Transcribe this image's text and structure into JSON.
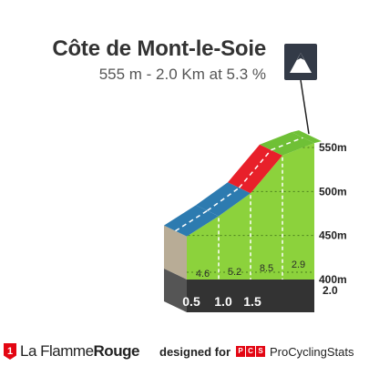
{
  "header": {
    "title": "Côte de Mont-le-Soie",
    "subtitle": "555 m - 2.0 Km at 5.3 %"
  },
  "icon": {
    "name": "mountain-summit-icon",
    "bg": "#333a47"
  },
  "colors": {
    "green": "#8cd23c",
    "blue": "#2d7bb0",
    "red": "#e8202a",
    "top_green": "#6fc036",
    "side": "#b8ac96",
    "base": "#333333",
    "grid": "#2f5a10"
  },
  "chart_data": {
    "type": "area",
    "title": "Côte de Mont-le-Soie",
    "xlabel": "",
    "ylabel": "",
    "xlim": [
      0,
      2.0
    ],
    "ylim": [
      400,
      555
    ],
    "y_ticks": [
      "400m",
      "450m",
      "500m",
      "550m"
    ],
    "y_tick_values": [
      400,
      450,
      500,
      550
    ],
    "x_end_label": "2.0",
    "distance_labels": [
      "0.5",
      "1.0",
      "1.5"
    ],
    "segments": [
      {
        "from_km": 0.0,
        "to_km": 0.5,
        "gradient": "4.6",
        "color": "blue"
      },
      {
        "from_km": 0.5,
        "to_km": 1.0,
        "gradient": "5.2",
        "color": "blue"
      },
      {
        "from_km": 1.0,
        "to_km": 1.5,
        "gradient": "8.5",
        "color": "red"
      },
      {
        "from_km": 1.5,
        "to_km": 2.0,
        "gradient": "2.9",
        "color": "green"
      }
    ],
    "profile": [
      {
        "km": 0.0,
        "alt": 449
      },
      {
        "km": 0.5,
        "alt": 472
      },
      {
        "km": 1.0,
        "alt": 498
      },
      {
        "km": 1.5,
        "alt": 541
      },
      {
        "km": 2.0,
        "alt": 555
      }
    ],
    "grid": true,
    "legend": "none"
  },
  "footer": {
    "brand_mark": "1",
    "brand_plain": "La Flamme",
    "brand_bold": "Rouge",
    "designed_for": "designed for",
    "pcs_letters": [
      "P",
      "C",
      "S"
    ],
    "pcs_name": "ProCyclingStats"
  }
}
